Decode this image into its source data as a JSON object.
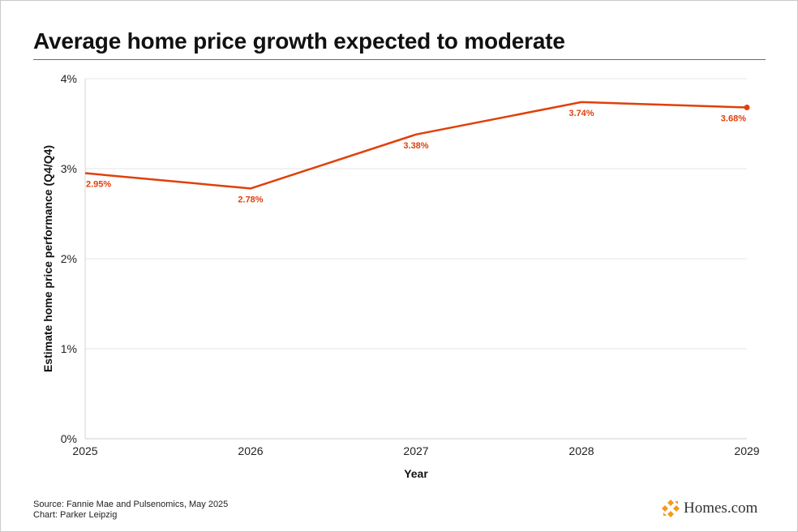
{
  "chart_data": {
    "type": "line",
    "title": "Average home price growth expected to moderate",
    "xlabel": "Year",
    "ylabel": "Estimate home price performance (Q4/Q4)",
    "x": [
      "2025",
      "2026",
      "2027",
      "2028",
      "2029"
    ],
    "series": [
      {
        "values": [
          2.95,
          2.78,
          3.38,
          3.74,
          3.68
        ],
        "labels": [
          "2.95%",
          "2.78%",
          "3.38%",
          "3.74%",
          "3.68%"
        ],
        "color": "#e0400a"
      }
    ],
    "ylim": [
      0,
      4
    ],
    "yticks": [
      0,
      1,
      2,
      3,
      4
    ],
    "ytick_labels": [
      "0%",
      "1%",
      "2%",
      "3%",
      "4%"
    ],
    "grid": true,
    "end_marker": true
  },
  "footer": {
    "source": "Source: Fannie Mae and Pulsenomics, May 2025",
    "credit": "Chart: Parker Leipzig"
  },
  "brand": {
    "logo_text": "Homes.com",
    "logo_icon": "homes-com-logo-icon",
    "logo_color": "#f39a1f"
  }
}
